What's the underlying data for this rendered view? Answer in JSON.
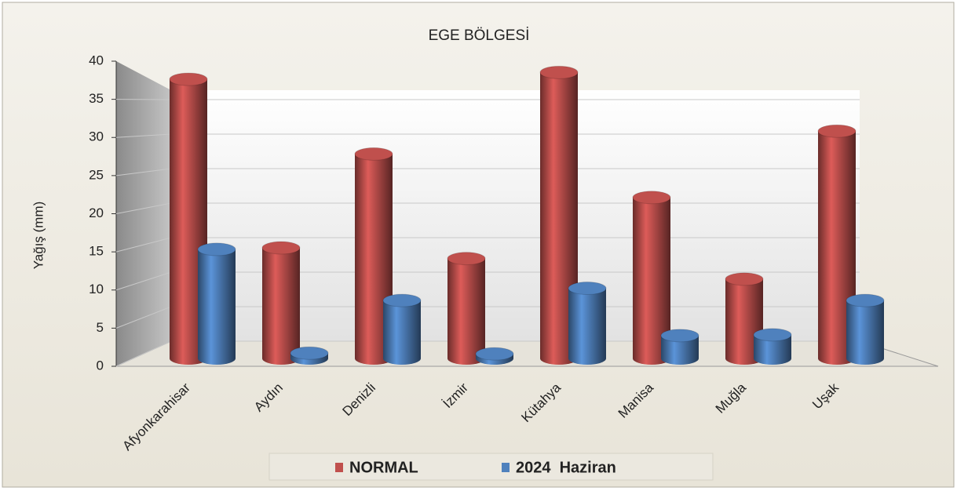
{
  "chart_data": {
    "type": "bar3d",
    "title": "EGE BÖLGESİ",
    "y_label": "Yağış (mm)",
    "categories": [
      "Afyonkarahisar",
      "Aydın",
      "Denizli",
      "İzmir",
      "Kütahya",
      "Manisa",
      "Muğla",
      "Uşak"
    ],
    "series": [
      {
        "name": "NORMAL",
        "color": "#c0504d",
        "values": [
          36.6,
          14.5,
          26.8,
          13.1,
          37.5,
          21.1,
          10.4,
          29.8
        ]
      },
      {
        "name": "2024  Haziran",
        "color": "#4f81bd",
        "values": [
          14.3,
          0.7,
          7.6,
          0.6,
          9.2,
          3.0,
          3.1,
          7.6
        ]
      }
    ],
    "ylim": [
      0,
      40
    ],
    "yticks": [
      0,
      5,
      10,
      15,
      20,
      25,
      30,
      35,
      40
    ],
    "grid": true,
    "legend": "bottom"
  }
}
